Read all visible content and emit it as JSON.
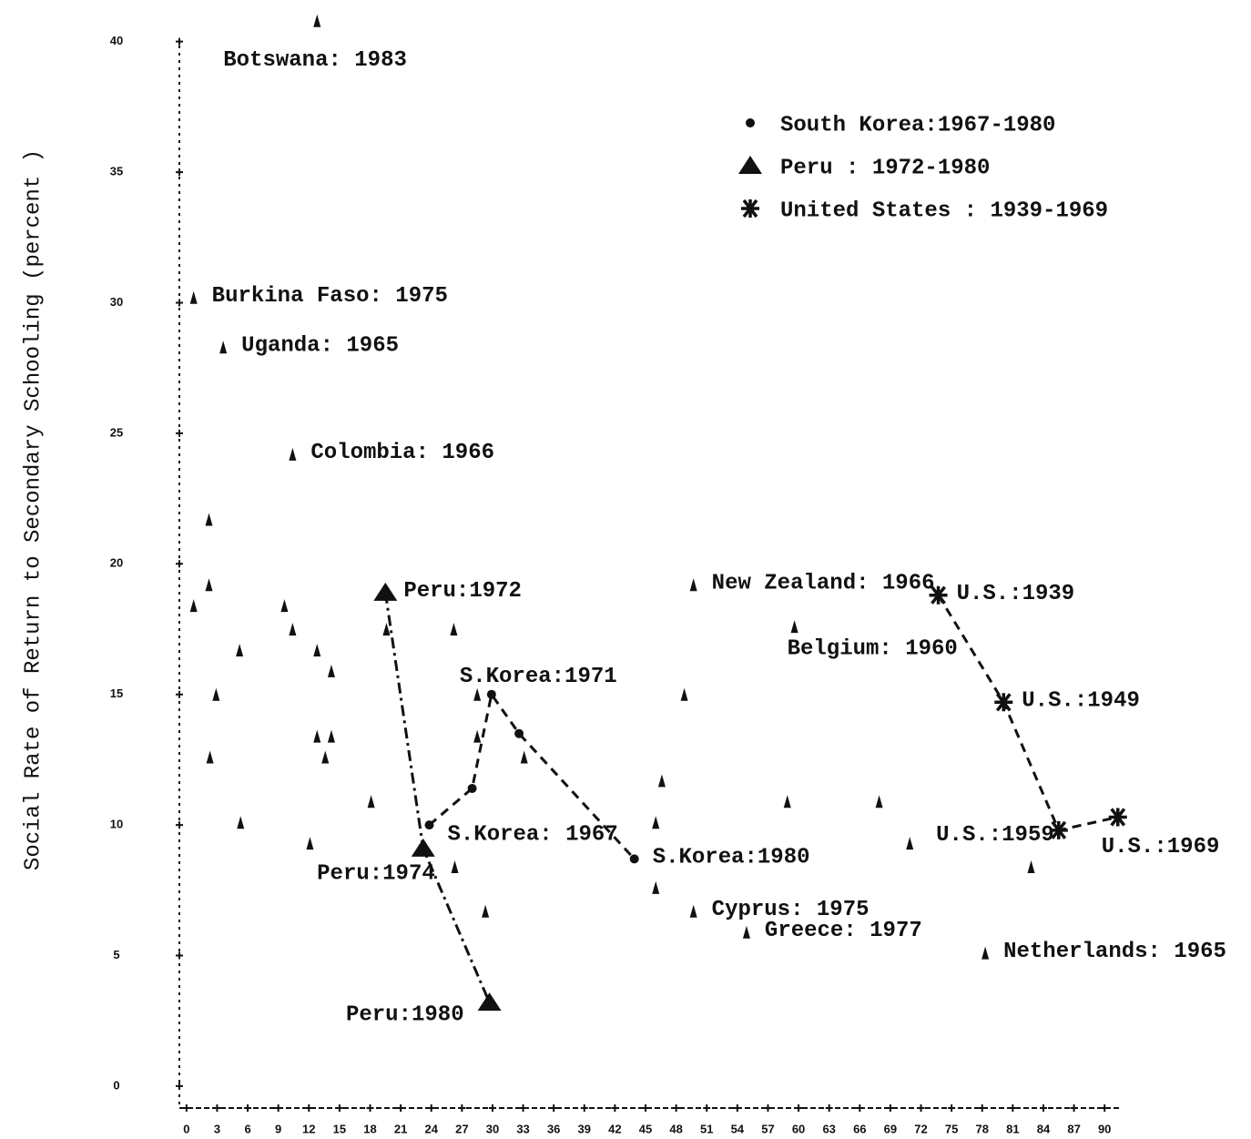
{
  "chart_data": {
    "type": "scatter",
    "y_label": "Social Rate of Return to Secondary Schooling (percent )",
    "xlim": [
      -0.7,
      91.5
    ],
    "ylim": [
      -0.84,
      41
    ],
    "xticks": [
      0,
      3,
      6,
      9,
      12,
      15,
      18,
      21,
      24,
      27,
      30,
      33,
      36,
      39,
      42,
      45,
      48,
      51,
      54,
      57,
      60,
      63,
      66,
      69,
      72,
      75,
      78,
      81,
      84,
      87,
      90
    ],
    "yticks": [
      0,
      5,
      10,
      15,
      20,
      25,
      30,
      35,
      40
    ],
    "legend": "upper right",
    "series": [
      {
        "marker": "caret",
        "color": "#111111",
        "x": [
          12.8,
          0.7,
          3.6,
          10.4,
          49.7,
          59.6,
          49.7,
          54.9,
          78.3,
          2.2,
          2.2,
          0.7,
          2.9,
          2.3,
          5.2,
          5.3,
          9.6,
          10.4,
          12.8,
          14.2,
          12.8,
          14.2,
          13.6,
          12.1,
          18.1,
          19.6,
          26.2,
          28.5,
          28.5,
          33.1,
          26.3,
          29.3,
          46.0,
          46.6,
          46.0,
          48.8,
          58.9,
          67.9,
          70.9,
          82.8
        ],
        "values": [
          40.8,
          30.2,
          28.3,
          24.2,
          19.2,
          17.6,
          6.7,
          5.9,
          5.1,
          21.7,
          19.2,
          18.4,
          15.0,
          12.6,
          16.7,
          10.1,
          18.4,
          17.5,
          16.7,
          15.9,
          13.4,
          13.4,
          12.6,
          9.3,
          10.9,
          17.5,
          17.5,
          15.0,
          13.4,
          12.6,
          8.4,
          6.7,
          10.1,
          11.7,
          7.6,
          15.0,
          10.9,
          10.9,
          9.3,
          8.4
        ],
        "labels": [
          "Botswana: 1983",
          "Burkina Faso: 1975",
          "Uganda: 1965",
          "Colombia: 1966",
          "New Zealand: 1966",
          "Belgium: 1960",
          "Cyprus: 1975",
          "Greece: 1977",
          "Netherlands: 1965",
          null,
          null,
          null,
          null,
          null,
          null,
          null,
          null,
          null,
          null,
          null,
          null,
          null,
          null,
          null,
          null,
          null,
          null,
          null,
          null,
          null,
          null,
          null,
          null,
          null,
          null,
          null,
          null,
          null,
          null,
          null
        ]
      },
      {
        "name": "South Korea:1967-1980",
        "marker": "dot",
        "line": "dashed",
        "color": "#111111",
        "x": [
          23.8,
          28.0,
          29.9,
          32.6,
          43.9
        ],
        "values": [
          10.0,
          11.4,
          15.0,
          13.5,
          8.7
        ],
        "labels": [
          "S.Korea: 1967",
          null,
          "S.Korea:1971",
          null,
          "S.Korea:1980"
        ]
      },
      {
        "name": "Peru : 1972-1980",
        "marker": "triangle",
        "line": "dashdot",
        "color": "#111111",
        "x": [
          19.5,
          23.2,
          29.7
        ],
        "values": [
          18.9,
          9.1,
          3.2
        ],
        "labels": [
          "Peru:1972",
          "Peru:1974",
          "Peru:1980"
        ]
      },
      {
        "name": "United States : 1939-1969",
        "marker": "star",
        "line": "dashed",
        "color": "#111111",
        "x": [
          73.7,
          80.1,
          85.5,
          91.3
        ],
        "values": [
          18.8,
          14.7,
          9.8,
          10.3
        ],
        "labels": [
          "U.S.:1939",
          "U.S.:1949",
          "U.S.:1959",
          "U.S.:1969"
        ]
      }
    ]
  }
}
